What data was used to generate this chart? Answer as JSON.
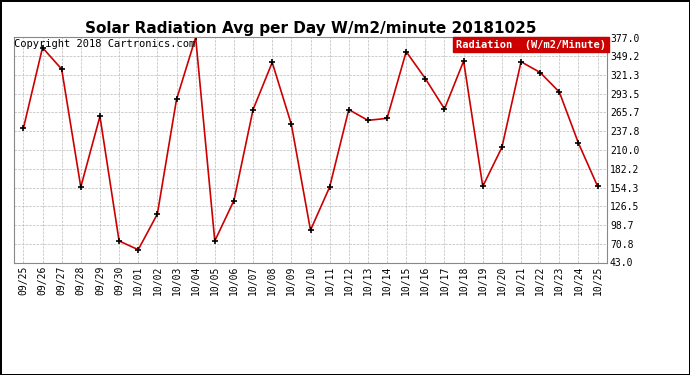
{
  "title": "Solar Radiation Avg per Day W/m2/minute 20181025",
  "copyright_text": "Copyright 2018 Cartronics.com",
  "legend_label": "Radiation  (W/m2/Minute)",
  "legend_bg": "#cc0000",
  "legend_fg": "#ffffff",
  "line_color": "#cc0000",
  "marker_color": "#000000",
  "bg_color": "#ffffff",
  "plot_bg_color": "#ffffff",
  "grid_color": "#bbbbbb",
  "border_color": "#000000",
  "labels": [
    "09/25",
    "09/26",
    "09/27",
    "09/28",
    "09/29",
    "09/30",
    "10/01",
    "10/02",
    "10/03",
    "10/04",
    "10/05",
    "10/06",
    "10/07",
    "10/08",
    "10/09",
    "10/10",
    "10/11",
    "10/12",
    "10/13",
    "10/14",
    "10/15",
    "10/16",
    "10/17",
    "10/18",
    "10/19",
    "10/20",
    "10/21",
    "10/22",
    "10/23",
    "10/24",
    "10/25"
  ],
  "values": [
    242,
    362,
    330,
    155,
    260,
    75,
    62,
    115,
    285,
    377,
    75,
    135,
    270,
    340,
    248,
    91,
    155,
    270,
    254,
    257,
    356,
    316,
    271,
    342,
    156,
    214,
    341,
    325,
    296,
    220,
    156
  ],
  "ylim": [
    43.0,
    377.0
  ],
  "yticks": [
    43.0,
    70.8,
    98.7,
    126.5,
    154.3,
    182.2,
    210.0,
    237.8,
    265.7,
    293.5,
    321.3,
    349.2,
    377.0
  ],
  "title_fontsize": 11,
  "tick_fontsize": 7,
  "copyright_fontsize": 7.5,
  "legend_fontsize": 7.5
}
